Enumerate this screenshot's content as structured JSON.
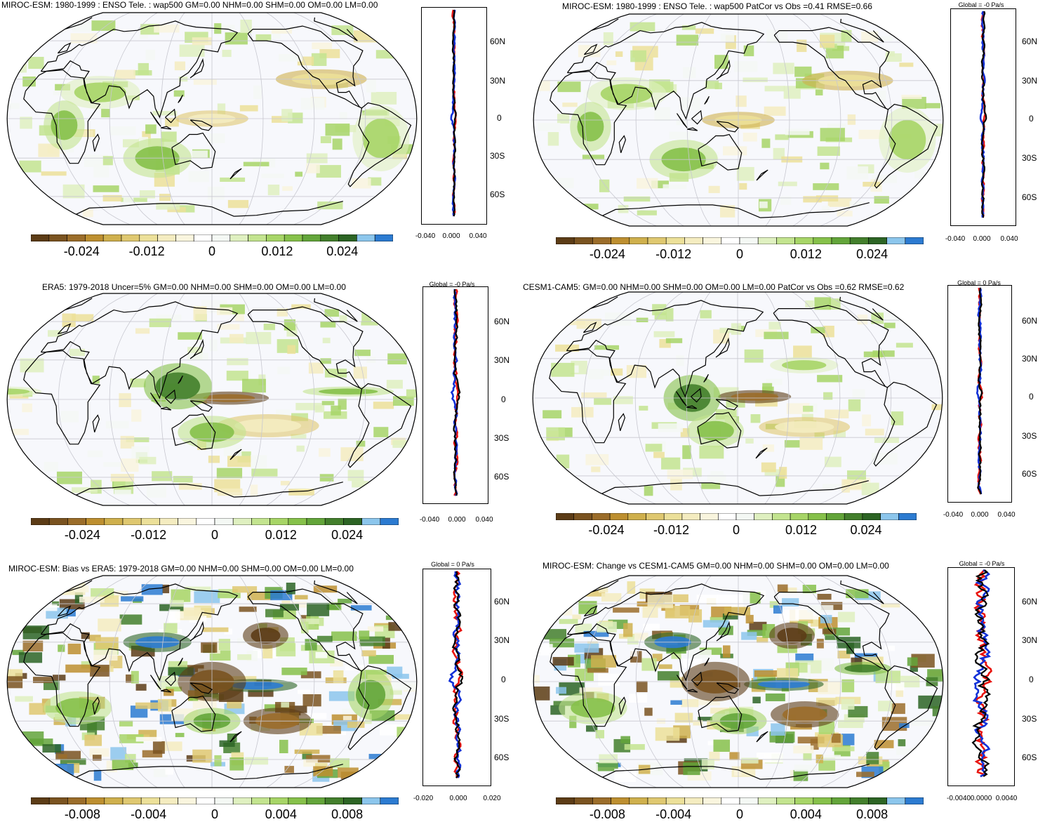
{
  "colors": {
    "ramp": [
      "#5c3c16",
      "#7a5320",
      "#9b6d2a",
      "#bd8f30",
      "#cfb04d",
      "#dfc870",
      "#ece099",
      "#f4ecc0",
      "#f9f5de",
      "#ffffff",
      "#f4f8f4",
      "#dff0c0",
      "#c3e48f",
      "#a7d567",
      "#86c14a",
      "#63a53a",
      "#437f2c",
      "#2c6424",
      "#8cc6ec",
      "#2c7bd1"
    ],
    "land": "#000000",
    "zonal_model": "#e8120c",
    "zonal_obs": "#1030d8",
    "zonal_mean": "#000000"
  },
  "panels": [
    {
      "id": "p1",
      "title": "MIROC-ESM: 1980-1999 : ENSO Tele. : wap500 GM=0.00 NHM=0.00 SHM=0.00 OM=0.00 LM=0.00",
      "cbar_labels": [
        "-0.024",
        "-0.012",
        "0",
        "0.012",
        "0.024"
      ],
      "zonal": {
        "title": "",
        "xticks": [
          "-0.040",
          "0.000",
          "0.040"
        ],
        "lat": [
          "60N",
          "30N",
          "0",
          "30S",
          "60S"
        ]
      }
    },
    {
      "id": "p2",
      "title": "MIROC-ESM: 1980-1999 : ENSO Tele. : wap500 PatCor vs Obs =0.41 RMSE=0.66",
      "cbar_labels": [
        "-0.024",
        "-0.012",
        "0",
        "0.012",
        "0.024"
      ],
      "zonal": {
        "title": "Global = -0 Pa/s",
        "xticks": [
          "-0.040",
          "0.000",
          "0.040"
        ],
        "lat": [
          "60N",
          "30N",
          "0",
          "30S",
          "60S"
        ]
      }
    },
    {
      "id": "p3",
      "title": "ERA5: 1979-2018 Uncer=5% GM=0.00 NHM=0.00 SHM=0.00 OM=0.00 LM=0.00",
      "cbar_labels": [
        "-0.024",
        "-0.012",
        "0",
        "0.012",
        "0.024"
      ],
      "zonal": {
        "title": "Global = -0 Pa/s",
        "xticks": [
          "-0.040",
          "0.000",
          "0.040"
        ],
        "lat": [
          "60N",
          "30N",
          "0",
          "30S",
          "60S"
        ]
      }
    },
    {
      "id": "p4",
      "title": "CESM1-CAM5: GM=0.00 NHM=0.00 SHM=0.00 OM=0.00 LM=0.00 PatCor vs Obs =0.62 RMSE=0.62",
      "cbar_labels": [
        "-0.024",
        "-0.012",
        "0",
        "0.012",
        "0.024"
      ],
      "zonal": {
        "title": "Global = 0 Pa/s",
        "xticks": [
          "-0.040",
          "0.000",
          "0.040"
        ],
        "lat": [
          "60N",
          "30N",
          "0",
          "30S",
          "60S"
        ]
      }
    },
    {
      "id": "p5",
      "title": "MIROC-ESM: Bias vs ERA5: 1979-2018 GM=0.00 NHM=0.00 SHM=0.00 OM=0.00 LM=0.00",
      "cbar_labels": [
        "-0.008",
        "-0.004",
        "0",
        "0.004",
        "0.008"
      ],
      "zonal": {
        "title": "Global = 0 Pa/s",
        "xticks": [
          "-0.020",
          "0.000",
          "0.020"
        ],
        "lat": [
          "60N",
          "30N",
          "0",
          "30S",
          "60S"
        ]
      }
    },
    {
      "id": "p6",
      "title": "MIROC-ESM: Change vs CESM1-CAM5 GM=0.00 NHM=0.00 SHM=0.00 OM=0.00 LM=0.00",
      "cbar_labels": [
        "-0.008",
        "-0.004",
        "0",
        "0.004",
        "0.008"
      ],
      "zonal": {
        "title": "Global = -0 Pa/s",
        "xticks": [
          "-0.0040",
          "0.0000",
          "0.0040"
        ],
        "lat": [
          "60N",
          "30N",
          "0",
          "30S",
          "60S"
        ]
      }
    }
  ]
}
